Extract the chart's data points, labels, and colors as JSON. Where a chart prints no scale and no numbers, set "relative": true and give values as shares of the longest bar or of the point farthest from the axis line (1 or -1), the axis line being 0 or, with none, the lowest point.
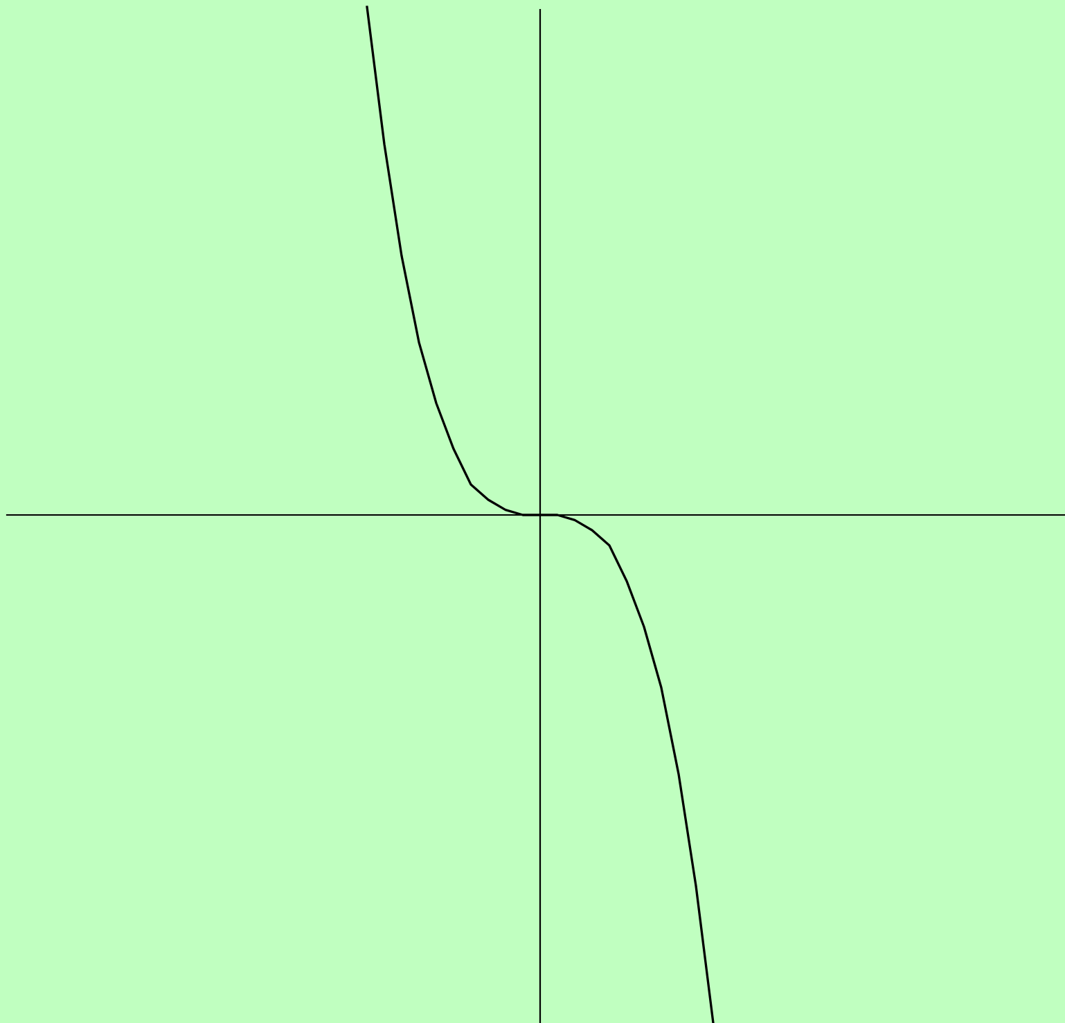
{
  "chart_data": {
    "type": "line",
    "relative": true,
    "color": "#000000",
    "categories": [
      null,
      null,
      null,
      null,
      null,
      null,
      null,
      null,
      null,
      null,
      null,
      null,
      null,
      null,
      null,
      null,
      null,
      null,
      null,
      null,
      null
    ],
    "values": [
      1,
      0.73,
      0.51,
      0.34,
      0.22,
      0.13,
      0.06,
      0.03,
      0.01,
      0,
      0,
      0,
      -0.01,
      -0.03,
      -0.06,
      -0.13,
      -0.22,
      -0.34,
      -0.51,
      -0.73,
      -1
    ],
    "marker": "none",
    "line_style": "solid"
  }
}
